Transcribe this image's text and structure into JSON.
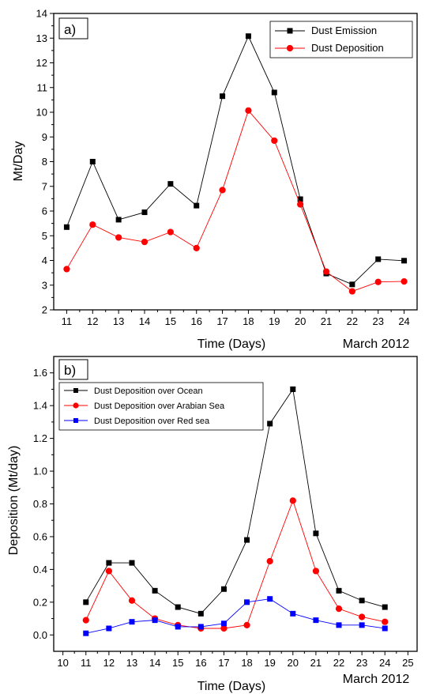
{
  "chart_data": [
    {
      "panel_label": "a)",
      "type": "line",
      "x": [
        11,
        12,
        13,
        14,
        15,
        16,
        17,
        18,
        19,
        20,
        21,
        22,
        23,
        24
      ],
      "x_ticks": [
        11,
        12,
        13,
        14,
        15,
        16,
        17,
        18,
        19,
        20,
        21,
        22,
        23,
        24
      ],
      "xlim": [
        10.5,
        24.5
      ],
      "ylim": [
        2,
        14
      ],
      "y_ticks": [
        2,
        3,
        4,
        5,
        6,
        7,
        8,
        9,
        10,
        11,
        12,
        13,
        14
      ],
      "xlabel": "Time (Days)",
      "x_annotation": "March 2012",
      "ylabel": "Mt/Day",
      "legend_position": "top-right",
      "grid": false,
      "series": [
        {
          "name": "Dust Emission",
          "color": "#000000",
          "marker": "square",
          "values": [
            5.35,
            8.0,
            5.65,
            5.95,
            7.1,
            6.22,
            10.65,
            13.08,
            10.8,
            6.48,
            3.47,
            3.03,
            4.05,
            3.99
          ]
        },
        {
          "name": "Dust Deposition",
          "color": "#ff0000",
          "marker": "circle",
          "values": [
            3.65,
            5.45,
            4.93,
            4.75,
            5.15,
            4.5,
            6.85,
            10.07,
            8.85,
            6.27,
            3.55,
            2.75,
            3.13,
            3.15
          ]
        }
      ]
    },
    {
      "panel_label": "b)",
      "type": "line",
      "x": [
        11,
        12,
        13,
        14,
        15,
        16,
        17,
        18,
        19,
        20,
        21,
        22,
        23,
        24
      ],
      "x_ticks": [
        10,
        11,
        12,
        13,
        14,
        15,
        16,
        17,
        18,
        19,
        20,
        21,
        22,
        23,
        24,
        25
      ],
      "xlim": [
        9.6,
        25.4
      ],
      "ylim": [
        -0.1,
        1.7
      ],
      "y_ticks": [
        "0.0",
        "0.2",
        "0.4",
        "0.6",
        "0.8",
        "1.0",
        "1.2",
        "1.4",
        "1.6"
      ],
      "xlabel": "Time (Days)",
      "x_annotation": "March 2012",
      "ylabel": "Deposition (Mt/day)",
      "legend_position": "top-left",
      "grid": false,
      "series": [
        {
          "name": "Dust Deposition over Ocean",
          "color": "#000000",
          "marker": "square",
          "values": [
            0.2,
            0.44,
            0.44,
            0.27,
            0.17,
            0.13,
            0.28,
            0.58,
            1.29,
            1.5,
            0.62,
            0.27,
            0.21,
            0.17
          ]
        },
        {
          "name": "Dust Deposition over Arabian Sea",
          "color": "#ff0000",
          "marker": "circle",
          "values": [
            0.09,
            0.39,
            0.21,
            0.1,
            0.06,
            0.04,
            0.04,
            0.06,
            0.45,
            0.82,
            0.39,
            0.16,
            0.11,
            0.08
          ]
        },
        {
          "name": "Dust Deposition over Red sea",
          "color": "#0000ff",
          "marker": "square",
          "values": [
            0.01,
            0.04,
            0.08,
            0.09,
            0.05,
            0.05,
            0.07,
            0.2,
            0.22,
            0.13,
            0.09,
            0.06,
            0.06,
            0.04
          ]
        }
      ]
    }
  ]
}
